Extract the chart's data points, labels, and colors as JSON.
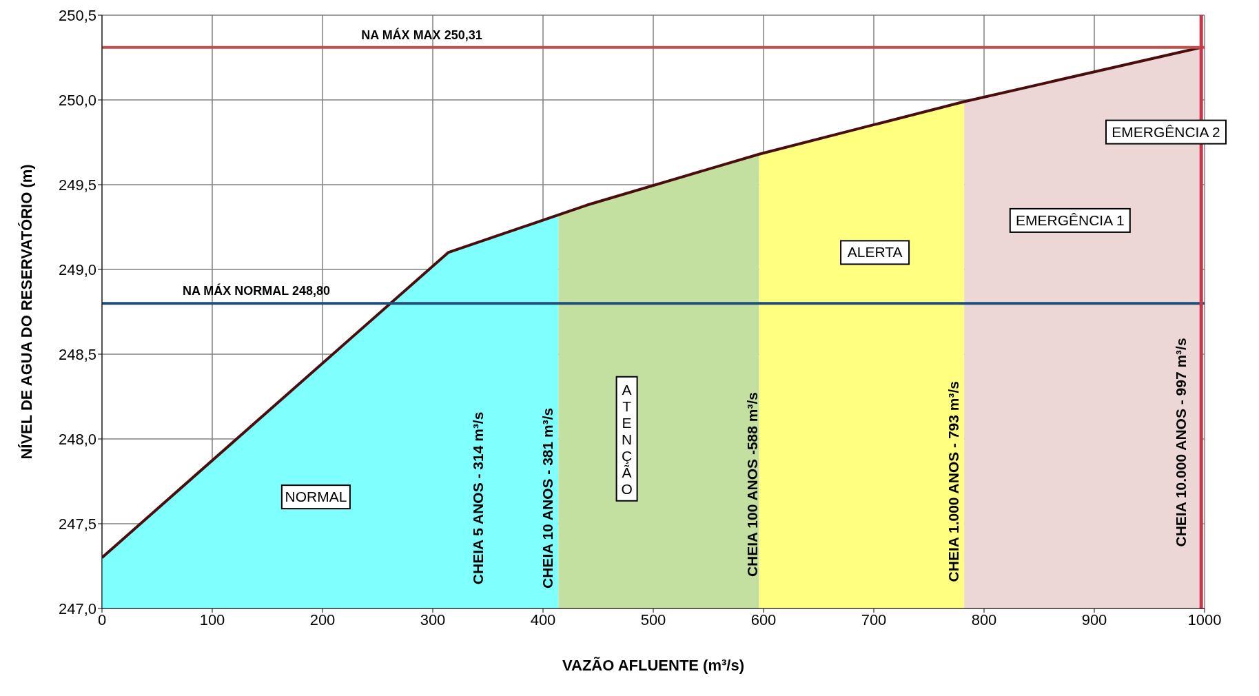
{
  "chart_data": {
    "type": "line",
    "xlabel": "VAZÃO AFLUENTE (m³/s)",
    "ylabel": "NÍVEL DE AGUA DO RESERVATÓRIO (m)",
    "xlim": [
      0,
      1000
    ],
    "xticks": [
      0,
      100,
      200,
      300,
      400,
      500,
      600,
      700,
      800,
      900,
      1000
    ],
    "ylim": [
      247.0,
      250.5
    ],
    "yticks": [
      {
        "value": 247.0,
        "label": "247,0"
      },
      {
        "value": 247.5,
        "label": "247,5"
      },
      {
        "value": 248.0,
        "label": "248,0"
      },
      {
        "value": 248.5,
        "label": "248,5"
      },
      {
        "value": 249.0,
        "label": "249,0"
      },
      {
        "value": 249.5,
        "label": "249,5"
      },
      {
        "value": 250.0,
        "label": "250,0"
      },
      {
        "value": 250.5,
        "label": "250,5"
      }
    ],
    "grid": true,
    "marker": "none",
    "line_style": "solid",
    "series": [
      {
        "type": "area",
        "color": "#80ffff",
        "x": [
          0,
          314,
          414
        ],
        "values": [
          247.3,
          249.1,
          249.33
        ]
      },
      {
        "type": "area",
        "color": "#c4e0a0",
        "x": [
          414,
          596
        ],
        "values": [
          249.33,
          249.68
        ]
      },
      {
        "type": "area",
        "color": "#ffff80",
        "x": [
          596,
          782
        ],
        "values": [
          249.68,
          249.99
        ]
      },
      {
        "type": "area",
        "color": "#ecd6d6",
        "x": [
          782,
          997
        ],
        "values": [
          249.99,
          250.31
        ]
      },
      {
        "color": "#4a0d0d",
        "x": [
          0,
          314,
          440,
          596,
          782,
          997
        ],
        "values": [
          247.3,
          249.1,
          249.38,
          249.68,
          249.99,
          250.31
        ]
      }
    ],
    "ref_lines": [
      {
        "axis": "y",
        "value": 250.31,
        "label": "NA MÁX MAX 250,31",
        "color": "#c0504d"
      },
      {
        "axis": "y",
        "value": 248.8,
        "label": "NA MÁX NORMAL 248,80",
        "color": "#1f4e79"
      },
      {
        "axis": "x",
        "value": 997,
        "label": "CHEIA 10.000 ANOS - 997 m³/s",
        "color": "#c8384a"
      }
    ],
    "annotations": [
      "NORMAL",
      "ATENÇÃO",
      "ALERTA",
      "EMERGÊNCIA 1",
      "EMERGÊNCIA 2",
      "CHEIA 5 ANOS - 314 m³/s",
      "CHEIA 10 ANOS - 381 m³/s",
      "CHEIA 100 ANOS -588 m³/s",
      "CHEIA 1.000 ANOS - 793 m³/s"
    ]
  }
}
